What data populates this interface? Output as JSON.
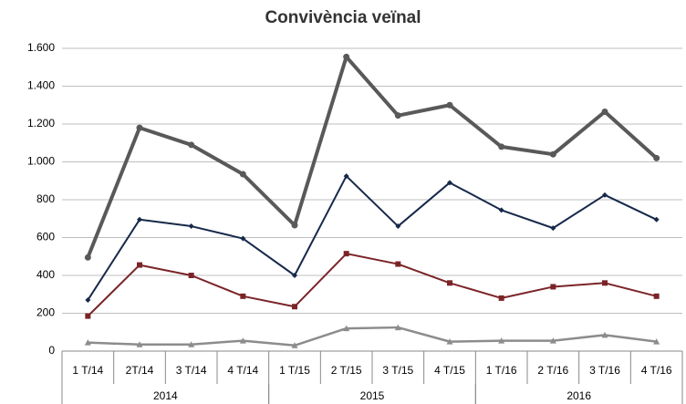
{
  "chart_data": {
    "type": "line",
    "title": "Convivència veïnal",
    "categories": [
      "1 T/14",
      "2T/14",
      "3 T/14",
      "4 T/14",
      "1 T/15",
      "2 T/15",
      "3 T/15",
      "4 T/15",
      "1 T/16",
      "2 T/16",
      "3 T/16",
      "4 T/16"
    ],
    "groups": [
      "2014",
      "2015",
      "2016"
    ],
    "series": [
      {
        "color": "#595959",
        "marker": "circle",
        "values": [
          495,
          1180,
          1090,
          935,
          665,
          1555,
          1245,
          1300,
          1080,
          1040,
          1265,
          1020
        ]
      },
      {
        "color": "#17294a",
        "marker": "diamond",
        "values": [
          270,
          695,
          660,
          595,
          400,
          925,
          660,
          890,
          745,
          650,
          825,
          695
        ]
      },
      {
        "color": "#7b2428",
        "marker": "square",
        "values": [
          185,
          455,
          400,
          290,
          235,
          515,
          460,
          360,
          280,
          340,
          360,
          290
        ]
      },
      {
        "color": "#8c8c8c",
        "marker": "triangle",
        "values": [
          45,
          35,
          35,
          55,
          30,
          120,
          125,
          50,
          55,
          55,
          85,
          50
        ]
      }
    ],
    "ylim": [
      0,
      1600
    ],
    "yticks": [
      0,
      200,
      400,
      600,
      800,
      {
        "value": 1000,
        "label": "1.000"
      },
      {
        "value": 1200,
        "label": "1.200"
      },
      {
        "value": 1400,
        "label": "1.400"
      },
      {
        "value": 1600,
        "label": "1.600"
      }
    ],
    "grid": true
  }
}
